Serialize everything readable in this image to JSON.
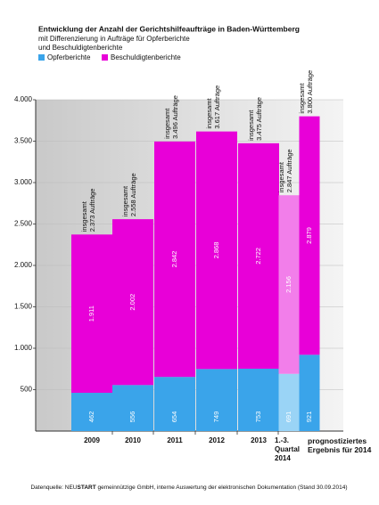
{
  "chart_data": {
    "type": "bar",
    "stacked": true,
    "title": "Entwicklung der Anzahl der Gerichtshilfeaufträge in Baden-Württemberg",
    "subtitle": [
      "mit Differenzierung in Aufträge für Opferberichte",
      "und Beschuldigtenberichte"
    ],
    "categories": [
      "2009",
      "2010",
      "2011",
      "2012",
      "2013",
      "1.-3. Quartal 2014",
      "prognostiziertes Ergebnis für 2014"
    ],
    "series": [
      {
        "name": "Opferberichte",
        "color": "#3aa4ea",
        "colors": [
          "#3aa4ea",
          "#3aa4ea",
          "#3aa4ea",
          "#3aa4ea",
          "#3aa4ea",
          "#9ad4f6",
          "#3aa4ea"
        ],
        "values": [
          462,
          556,
          654,
          749,
          753,
          691,
          921
        ],
        "value_labels": [
          "462",
          "556",
          "654",
          "749",
          "753",
          "691",
          "921"
        ]
      },
      {
        "name": "Beschuldigtenberichte",
        "color": "#e800d8",
        "colors": [
          "#e800d8",
          "#e800d8",
          "#e800d8",
          "#e800d8",
          "#e800d8",
          "#f27eea",
          "#e800d8"
        ],
        "values": [
          1911,
          2002,
          2842,
          2868,
          2722,
          2156,
          2879
        ],
        "value_labels": [
          "1.911",
          "2.002",
          "2.842",
          "2.868",
          "2.722",
          "2.156",
          "2.879"
        ]
      }
    ],
    "annotations": [
      [
        "insgesamt",
        "2.373 Aufträge"
      ],
      [
        "insgesamt",
        "2.558 Aufträge"
      ],
      [
        "insgesamt",
        "3.496 Aufträge"
      ],
      [
        "insgesamt",
        "3.617 Aufträge"
      ],
      [
        "insgesamt",
        "3.475 Aufträge"
      ],
      [
        "insgesamt",
        "2.847 Aufträge"
      ],
      [
        "insgesamt",
        "3.800 Aufträge"
      ]
    ],
    "ylim": [
      0,
      4000
    ],
    "yticks": [
      500,
      {
        "value": 1000,
        "label": "1.000"
      },
      {
        "value": 1500,
        "label": "1.500"
      },
      {
        "value": 2000,
        "label": "2.000"
      },
      {
        "value": 2500,
        "label": "2.500"
      },
      {
        "value": 3000,
        "label": "3.000"
      },
      {
        "value": 3500,
        "label": "3.500"
      },
      {
        "value": 4000,
        "label": "4.000"
      }
    ],
    "grid": true,
    "source": [
      "Datenquelle: NEU",
      "START",
      " gemeinnützige GmbH, interne Auswertung der elektronischen Dokumentation (Stand 30.09.2014)"
    ]
  }
}
